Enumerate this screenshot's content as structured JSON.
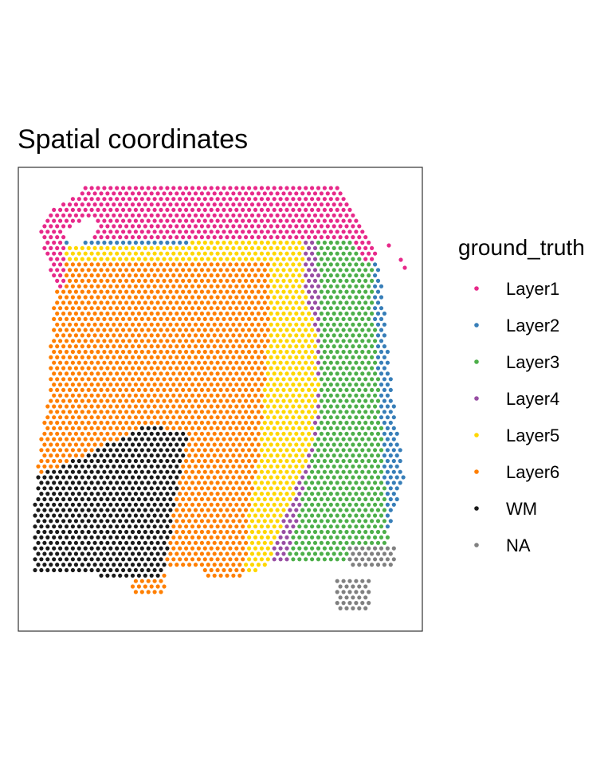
{
  "chart_data": {
    "type": "scatter",
    "title": "Spatial coordinates",
    "xlabel": "",
    "ylabel": "",
    "axes_shown": false,
    "grid": false,
    "legend": {
      "title": "ground_truth",
      "placement": "right",
      "entries": [
        {
          "label": "Layer1",
          "color": "#E7298A"
        },
        {
          "label": "Layer2",
          "color": "#377EB8"
        },
        {
          "label": "Layer3",
          "color": "#4DAF4A"
        },
        {
          "label": "Layer4",
          "color": "#984EA3"
        },
        {
          "label": "Layer5",
          "color": "#FFD700"
        },
        {
          "label": "Layer6",
          "color": "#FF7F00"
        },
        {
          "label": "WM",
          "color": "#1A1A1A"
        },
        {
          "label": "NA",
          "color": "#808080"
        }
      ]
    },
    "spot_layout": "hexagonal grid of tissue spots; each spot coloured by its ground_truth layer"
  }
}
